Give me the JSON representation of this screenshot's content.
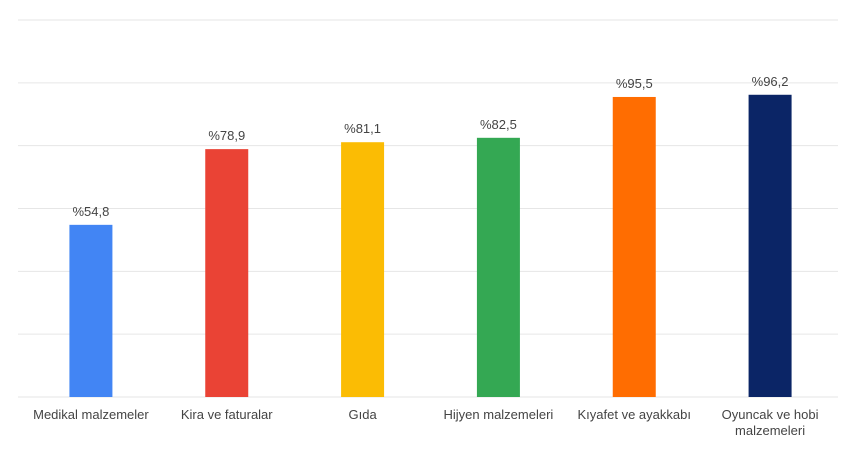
{
  "chart_data": {
    "type": "bar",
    "categories": [
      "Medikal malzemeler",
      "Kira ve faturalar",
      "Gıda",
      "Hijyen malzemeleri",
      "Kıyafet ve ayakkabı",
      "Oyuncak ve hobi malzemeleri"
    ],
    "values": [
      54.8,
      78.9,
      81.1,
      82.5,
      95.5,
      96.2
    ],
    "value_labels": [
      "%54,8",
      "%78,9",
      "%81,1",
      "%82,5",
      "%95,5",
      "%96,2"
    ],
    "colors": [
      "#4285f4",
      "#ea4335",
      "#fbbc04",
      "#34a853",
      "#ff6d01",
      "#0b2566"
    ],
    "ylim": [
      0,
      120
    ],
    "yticks": [
      0,
      20,
      40,
      60,
      80,
      100,
      120
    ],
    "grid": true
  }
}
